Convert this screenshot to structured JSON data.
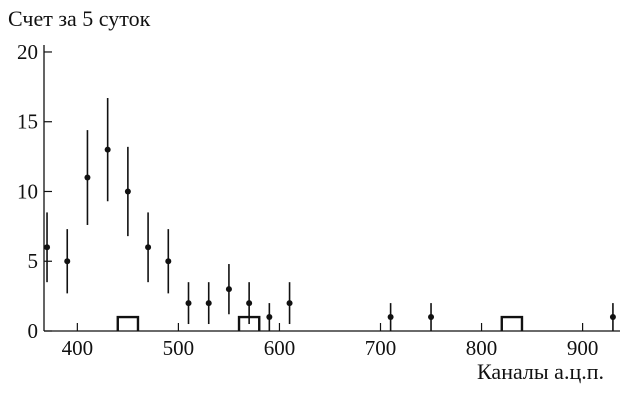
{
  "chart_data": {
    "type": "scatter",
    "title": "Счет за 5 суток",
    "xlabel": "Каналы а.ц.п.",
    "ylabel": "",
    "xlim": [
      367,
      937
    ],
    "ylim": [
      0,
      20.5
    ],
    "x_ticks": [
      400,
      500,
      600,
      700,
      800,
      900
    ],
    "y_ticks": [
      0,
      5,
      10,
      15,
      20
    ],
    "grid": false,
    "series": [
      {
        "points": [
          {
            "x": 370,
            "y": 6,
            "err": 2.5
          },
          {
            "x": 390,
            "y": 5,
            "err": 2.3
          },
          {
            "x": 410,
            "y": 11,
            "err": 3.4
          },
          {
            "x": 430,
            "y": 13,
            "err": 3.7
          },
          {
            "x": 450,
            "y": 10,
            "err": 3.2
          },
          {
            "x": 470,
            "y": 6,
            "err": 2.5
          },
          {
            "x": 490,
            "y": 5,
            "err": 2.3
          },
          {
            "x": 510,
            "y": 2,
            "err": 1.5
          },
          {
            "x": 530,
            "y": 2,
            "err": 1.5
          },
          {
            "x": 550,
            "y": 3,
            "err": 1.8
          },
          {
            "x": 570,
            "y": 2,
            "err": 1.5
          },
          {
            "x": 590,
            "y": 1,
            "err": 1.0
          },
          {
            "x": 610,
            "y": 2,
            "err": 1.5
          },
          {
            "x": 710,
            "y": 1,
            "err": 1.0
          },
          {
            "x": 750,
            "y": 1,
            "err": 1.0
          },
          {
            "x": 930,
            "y": 1,
            "err": 1.0
          }
        ]
      },
      {
        "type": "bar",
        "bars": [
          {
            "x0": 440,
            "x1": 460,
            "y": 1
          },
          {
            "x0": 560,
            "x1": 580,
            "y": 1
          },
          {
            "x0": 820,
            "x1": 840,
            "y": 1
          }
        ]
      }
    ]
  }
}
